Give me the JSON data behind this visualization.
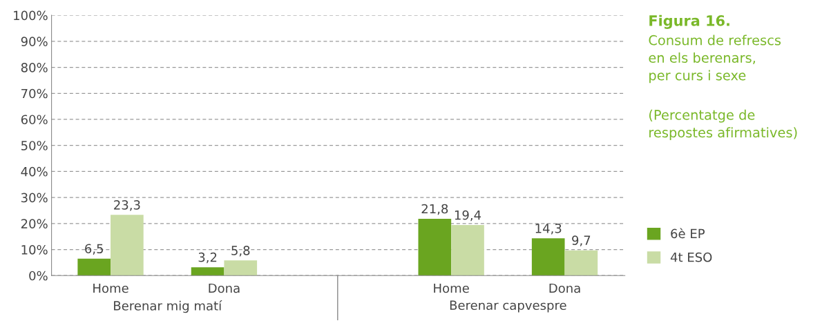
{
  "chart_data": {
    "type": "bar",
    "title": "Figura 16.",
    "subtitle": "Consum de refrescs\nen els berenars,\nper curs i sexe",
    "categories": [
      "Home",
      "Dona",
      null,
      "Home",
      "Dona"
    ],
    "series": [
      {
        "name": "6è EP",
        "color": "#6aa520",
        "values": [
          6.5,
          3.2,
          null,
          21.8,
          14.3
        ],
        "value_labels": [
          "6,5",
          "3,2",
          null,
          "21,8",
          "14,3"
        ]
      },
      {
        "name": "4t ESO",
        "color": "#c9dca5",
        "values": [
          23.3,
          5.8,
          null,
          19.4,
          9.7
        ],
        "value_labels": [
          "23,3",
          "5,8",
          null,
          "19,4",
          "9,7"
        ]
      }
    ],
    "ylim": [
      0,
      100
    ],
    "yticks": [
      {
        "value": 0,
        "label": "0%"
      },
      {
        "value": 10,
        "label": "10%"
      },
      {
        "value": 20,
        "label": "20%"
      },
      {
        "value": 30,
        "label": "30%"
      },
      {
        "value": 40,
        "label": "40%"
      },
      {
        "value": 50,
        "label": "50%"
      },
      {
        "value": 60,
        "label": "60%"
      },
      {
        "value": 70,
        "label": "70%"
      },
      {
        "value": 80,
        "label": "80%"
      },
      {
        "value": 90,
        "label": "90%"
      },
      {
        "value": 100,
        "label": "100%"
      }
    ],
    "grid": "y",
    "legend": "right",
    "annotations": [
      "(Percentatge de\nrespostes afirmatives)",
      "Berenar mig matí",
      "Berenar capvespre"
    ]
  }
}
